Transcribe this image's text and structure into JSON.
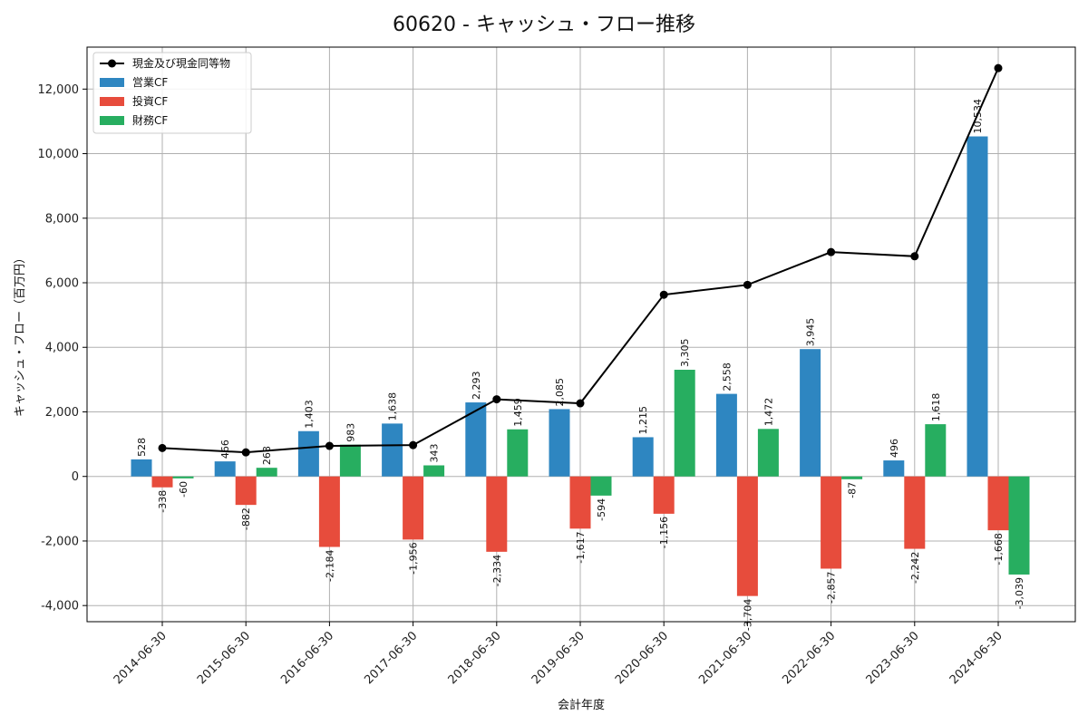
{
  "chart_data": {
    "type": "bar",
    "title": "60620 - キャッシュ・フロー推移",
    "xlabel": "会計年度",
    "ylabel": "キャッシュ・フロー（百万円）",
    "ylim": [
      -4500,
      13300
    ],
    "yticks": [
      -4000,
      -2000,
      0,
      2000,
      4000,
      6000,
      8000,
      10000,
      12000
    ],
    "ytick_labels": [
      "-4,000",
      "-2,000",
      "0",
      "2,000",
      "4,000",
      "6,000",
      "8,000",
      "10,000",
      "12,000"
    ],
    "grid": true,
    "legend_position": "top-left",
    "categories": [
      "2014-06-30",
      "2015-06-30",
      "2016-06-30",
      "2017-06-30",
      "2018-06-30",
      "2019-06-30",
      "2020-06-30",
      "2021-06-30",
      "2022-06-30",
      "2023-06-30",
      "2024-06-30"
    ],
    "line": {
      "name": "現金及び現金同等物",
      "color": "#000000",
      "values": [
        880,
        745,
        945,
        970,
        2390,
        2265,
        5630,
        5935,
        6950,
        6820,
        12650
      ]
    },
    "series": [
      {
        "name": "営業CF",
        "color": "#2e86c1",
        "values": [
          528,
          466,
          1403,
          1638,
          2293,
          2085,
          1215,
          2558,
          3945,
          496,
          10534
        ],
        "labels": [
          "528",
          "466",
          "1,403",
          "1,638",
          "2,293",
          "2,085",
          "1,215",
          "2,558",
          "3,945",
          "496",
          "10,534"
        ]
      },
      {
        "name": "投資CF",
        "color": "#e74c3c",
        "values": [
          -338,
          -882,
          -2184,
          -1956,
          -2334,
          -1617,
          -1156,
          -3704,
          -2857,
          -2242,
          -1668
        ],
        "labels": [
          "-338",
          "-882",
          "-2,184",
          "-1,956",
          "-2,334",
          "-1,617",
          "-1,156",
          "-3,704",
          "-2,857",
          "-2,242",
          "-1,668"
        ]
      },
      {
        "name": "財務CF",
        "color": "#27ae60",
        "values": [
          -60,
          268,
          983,
          343,
          1459,
          -594,
          3305,
          1472,
          -87,
          1618,
          -3039
        ],
        "labels": [
          "-60",
          "268",
          "983",
          "343",
          "1,459",
          "-594",
          "3,305",
          "1,472",
          "-87",
          "1,618",
          "-3,039"
        ]
      }
    ]
  }
}
